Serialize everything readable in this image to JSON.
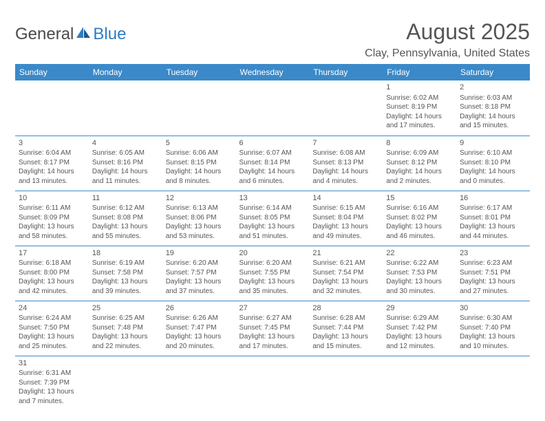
{
  "logo": {
    "part1": "General",
    "part2": "Blue"
  },
  "title": "August 2025",
  "subtitle": "Clay, Pennsylvania, United States",
  "colors": {
    "header_bg": "#3b89c9",
    "header_text": "#ffffff",
    "border": "#3b89c9",
    "text": "#555555",
    "logo_blue": "#2e7cc2",
    "page_bg": "#ffffff"
  },
  "day_headers": [
    "Sunday",
    "Monday",
    "Tuesday",
    "Wednesday",
    "Thursday",
    "Friday",
    "Saturday"
  ],
  "weeks": [
    [
      null,
      null,
      null,
      null,
      null,
      {
        "n": "1",
        "sr": "6:02 AM",
        "ss": "8:19 PM",
        "dl": "14 hours and 17 minutes."
      },
      {
        "n": "2",
        "sr": "6:03 AM",
        "ss": "8:18 PM",
        "dl": "14 hours and 15 minutes."
      }
    ],
    [
      {
        "n": "3",
        "sr": "6:04 AM",
        "ss": "8:17 PM",
        "dl": "14 hours and 13 minutes."
      },
      {
        "n": "4",
        "sr": "6:05 AM",
        "ss": "8:16 PM",
        "dl": "14 hours and 11 minutes."
      },
      {
        "n": "5",
        "sr": "6:06 AM",
        "ss": "8:15 PM",
        "dl": "14 hours and 8 minutes."
      },
      {
        "n": "6",
        "sr": "6:07 AM",
        "ss": "8:14 PM",
        "dl": "14 hours and 6 minutes."
      },
      {
        "n": "7",
        "sr": "6:08 AM",
        "ss": "8:13 PM",
        "dl": "14 hours and 4 minutes."
      },
      {
        "n": "8",
        "sr": "6:09 AM",
        "ss": "8:12 PM",
        "dl": "14 hours and 2 minutes."
      },
      {
        "n": "9",
        "sr": "6:10 AM",
        "ss": "8:10 PM",
        "dl": "14 hours and 0 minutes."
      }
    ],
    [
      {
        "n": "10",
        "sr": "6:11 AM",
        "ss": "8:09 PM",
        "dl": "13 hours and 58 minutes."
      },
      {
        "n": "11",
        "sr": "6:12 AM",
        "ss": "8:08 PM",
        "dl": "13 hours and 55 minutes."
      },
      {
        "n": "12",
        "sr": "6:13 AM",
        "ss": "8:06 PM",
        "dl": "13 hours and 53 minutes."
      },
      {
        "n": "13",
        "sr": "6:14 AM",
        "ss": "8:05 PM",
        "dl": "13 hours and 51 minutes."
      },
      {
        "n": "14",
        "sr": "6:15 AM",
        "ss": "8:04 PM",
        "dl": "13 hours and 49 minutes."
      },
      {
        "n": "15",
        "sr": "6:16 AM",
        "ss": "8:02 PM",
        "dl": "13 hours and 46 minutes."
      },
      {
        "n": "16",
        "sr": "6:17 AM",
        "ss": "8:01 PM",
        "dl": "13 hours and 44 minutes."
      }
    ],
    [
      {
        "n": "17",
        "sr": "6:18 AM",
        "ss": "8:00 PM",
        "dl": "13 hours and 42 minutes."
      },
      {
        "n": "18",
        "sr": "6:19 AM",
        "ss": "7:58 PM",
        "dl": "13 hours and 39 minutes."
      },
      {
        "n": "19",
        "sr": "6:20 AM",
        "ss": "7:57 PM",
        "dl": "13 hours and 37 minutes."
      },
      {
        "n": "20",
        "sr": "6:20 AM",
        "ss": "7:55 PM",
        "dl": "13 hours and 35 minutes."
      },
      {
        "n": "21",
        "sr": "6:21 AM",
        "ss": "7:54 PM",
        "dl": "13 hours and 32 minutes."
      },
      {
        "n": "22",
        "sr": "6:22 AM",
        "ss": "7:53 PM",
        "dl": "13 hours and 30 minutes."
      },
      {
        "n": "23",
        "sr": "6:23 AM",
        "ss": "7:51 PM",
        "dl": "13 hours and 27 minutes."
      }
    ],
    [
      {
        "n": "24",
        "sr": "6:24 AM",
        "ss": "7:50 PM",
        "dl": "13 hours and 25 minutes."
      },
      {
        "n": "25",
        "sr": "6:25 AM",
        "ss": "7:48 PM",
        "dl": "13 hours and 22 minutes."
      },
      {
        "n": "26",
        "sr": "6:26 AM",
        "ss": "7:47 PM",
        "dl": "13 hours and 20 minutes."
      },
      {
        "n": "27",
        "sr": "6:27 AM",
        "ss": "7:45 PM",
        "dl": "13 hours and 17 minutes."
      },
      {
        "n": "28",
        "sr": "6:28 AM",
        "ss": "7:44 PM",
        "dl": "13 hours and 15 minutes."
      },
      {
        "n": "29",
        "sr": "6:29 AM",
        "ss": "7:42 PM",
        "dl": "13 hours and 12 minutes."
      },
      {
        "n": "30",
        "sr": "6:30 AM",
        "ss": "7:40 PM",
        "dl": "13 hours and 10 minutes."
      }
    ],
    [
      {
        "n": "31",
        "sr": "6:31 AM",
        "ss": "7:39 PM",
        "dl": "13 hours and 7 minutes."
      },
      null,
      null,
      null,
      null,
      null,
      null
    ]
  ],
  "labels": {
    "sunrise": "Sunrise: ",
    "sunset": "Sunset: ",
    "daylight": "Daylight: "
  }
}
